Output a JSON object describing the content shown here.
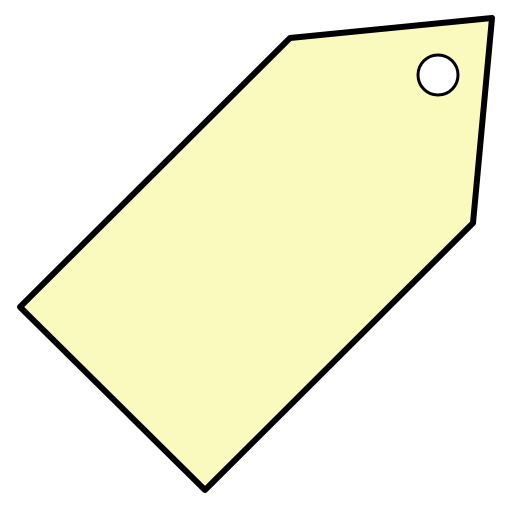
{
  "icon": {
    "name": "price-tag-icon",
    "colors": {
      "fill": "#FAFABE",
      "outline": "#000000",
      "hole": "#FFFFFF"
    }
  }
}
